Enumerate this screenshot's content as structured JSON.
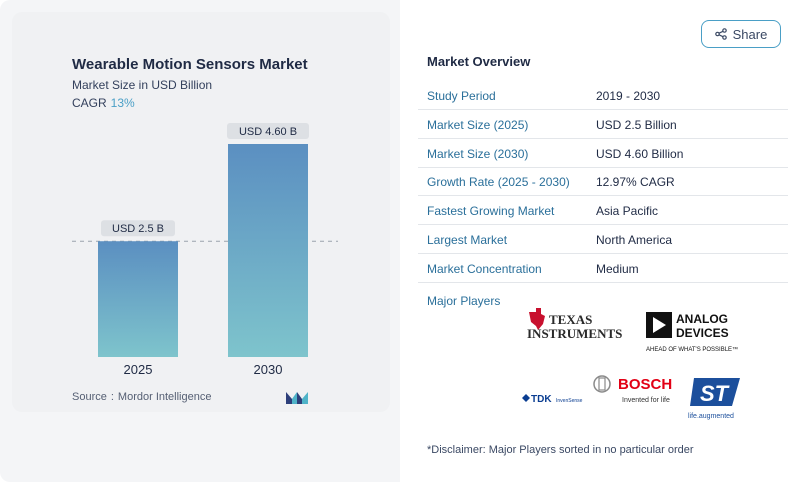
{
  "chart_data": {
    "type": "bar",
    "title": "Wearable Motion Sensors Market",
    "subtitle": "Market Size in USD Billion",
    "cagr_label": "CAGR",
    "cagr_value": "13%",
    "categories": [
      "2025",
      "2030"
    ],
    "values": [
      2.5,
      4.6
    ],
    "data_labels": [
      "USD 2.5 B",
      "USD 4.60 B"
    ],
    "ylim": [
      0,
      4.6
    ],
    "grid": false,
    "reference_line": "dashed, at first bar value",
    "bar_gradient": [
      "#5b8fc1",
      "#7ec4cc"
    ],
    "source_label": "Source",
    "source_name": "Mordor Intelligence"
  },
  "share": {
    "label": "Share",
    "icon": "share-icon"
  },
  "overview": {
    "title": "Market Overview",
    "rows": [
      {
        "key": "Study Period",
        "value": "2019 - 2030"
      },
      {
        "key": "Market Size (2025)",
        "value": "USD 2.5 Billion"
      },
      {
        "key": "Market Size (2030)",
        "value": "USD 4.60 Billion"
      },
      {
        "key": "Growth Rate (2025 - 2030)",
        "value": "12.97% CAGR"
      },
      {
        "key": "Fastest Growing Market",
        "value": "Asia Pacific"
      },
      {
        "key": "Largest Market",
        "value": "North America"
      },
      {
        "key": "Market Concentration",
        "value": "Medium"
      }
    ]
  },
  "players": {
    "title": "Major Players",
    "logos": {
      "ti": {
        "line1": "TEXAS",
        "line2": "INSTRUMENTS"
      },
      "adi": {
        "line1": "ANALOG",
        "line2": "DEVICES",
        "tagline": "AHEAD OF WHAT'S POSSIBLE™"
      },
      "tdk": {
        "name": "TDK",
        "sub": "InvenSense"
      },
      "bosch": {
        "name": "BOSCH",
        "tagline": "Invented for life"
      },
      "st": {
        "tagline": "life.augmented"
      }
    },
    "colors": {
      "ti_red": "#c8102e",
      "bosch_red": "#e20015",
      "st_blue": "#1c4f9c",
      "tdk_blue": "#0a3d91"
    }
  },
  "disclaimer": "*Disclaimer: Major Players sorted in no particular order"
}
